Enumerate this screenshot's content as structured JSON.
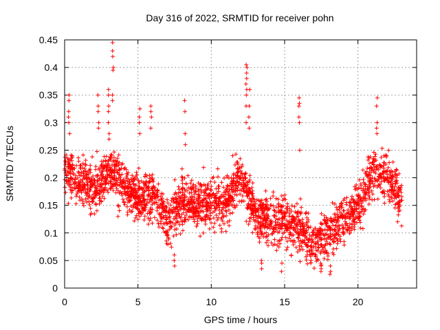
{
  "chart_data": {
    "type": "scatter",
    "title": "Day 316 of 2022, SRMTID for receiver pohn",
    "xlabel": "GPS time / hours",
    "ylabel": "SRMTID / TECUs",
    "xlim": [
      0,
      24
    ],
    "ylim": [
      0,
      0.45
    ],
    "xticks": [
      0,
      5,
      10,
      15,
      20
    ],
    "xtick_labels": [
      "0",
      "5",
      "10",
      "15",
      "20"
    ],
    "yticks": [
      0,
      0.05,
      0.1,
      0.15,
      0.2,
      0.25,
      0.3,
      0.35,
      0.4,
      0.45
    ],
    "ytick_labels": [
      "0",
      "0.05",
      "0.1",
      "0.15",
      "0.2",
      "0.25",
      "0.3",
      "0.35",
      "0.4",
      "0.45"
    ],
    "grid": true,
    "marker": "+",
    "series": [
      {
        "name": "SRMTID",
        "color": "#ff0000",
        "trend_hours": [
          0,
          0.5,
          1,
          2,
          3,
          4,
          5,
          6,
          7,
          8,
          9,
          10,
          11,
          12,
          13,
          14,
          15,
          16,
          17,
          18,
          19,
          20,
          21,
          22,
          23
        ],
        "trend_values": [
          0.22,
          0.21,
          0.19,
          0.18,
          0.21,
          0.19,
          0.16,
          0.17,
          0.12,
          0.16,
          0.15,
          0.16,
          0.15,
          0.2,
          0.14,
          0.12,
          0.12,
          0.11,
          0.08,
          0.1,
          0.12,
          0.15,
          0.21,
          0.2,
          0.16
        ],
        "spread": 0.045,
        "point_count": 2600,
        "spikes": [
          {
            "x": 0.3,
            "values": [
              0.35,
              0.34,
              0.32,
              0.31,
              0.3,
              0.28
            ]
          },
          {
            "x": 2.3,
            "values": [
              0.35,
              0.33,
              0.32,
              0.3,
              0.29
            ]
          },
          {
            "x": 3.0,
            "values": [
              0.36,
              0.35,
              0.33,
              0.32,
              0.3,
              0.28,
              0.27
            ]
          },
          {
            "x": 3.3,
            "values": [
              0.445,
              0.43,
              0.42,
              0.4,
              0.395,
              0.35,
              0.34
            ]
          },
          {
            "x": 5.1,
            "values": [
              0.325,
              0.31,
              0.3,
              0.28
            ]
          },
          {
            "x": 5.9,
            "values": [
              0.33,
              0.32,
              0.31,
              0.29
            ]
          },
          {
            "x": 8.2,
            "values": [
              0.34,
              0.32,
              0.28,
              0.26
            ]
          },
          {
            "x": 12.4,
            "values": [
              0.405,
              0.4,
              0.39,
              0.38,
              0.37,
              0.36,
              0.35,
              0.33,
              0.3
            ]
          },
          {
            "x": 12.6,
            "values": [
              0.36,
              0.33,
              0.31,
              0.29
            ]
          },
          {
            "x": 16.0,
            "values": [
              0.345,
              0.335,
              0.33,
              0.31,
              0.3,
              0.25
            ]
          },
          {
            "x": 21.3,
            "values": [
              0.345,
              0.33,
              0.3,
              0.29,
              0.28
            ]
          },
          {
            "x": 17.5,
            "values": [
              0.03,
              0.035,
              0.04,
              0.045
            ]
          },
          {
            "x": 13.4,
            "values": [
              0.035,
              0.045,
              0.05
            ]
          },
          {
            "x": 7.5,
            "values": [
              0.04,
              0.05,
              0.06
            ]
          },
          {
            "x": 14.8,
            "values": [
              0.03,
              0.045
            ]
          },
          {
            "x": 18.1,
            "values": [
              0.025,
              0.03,
              0.04
            ]
          }
        ]
      }
    ]
  }
}
